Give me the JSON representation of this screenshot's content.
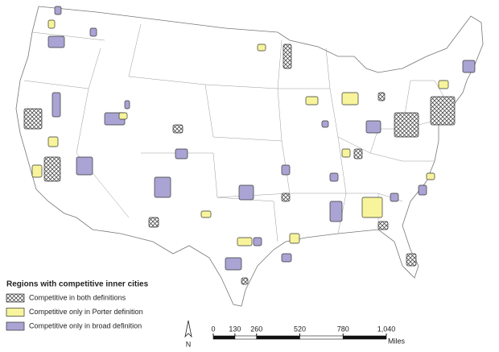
{
  "legend": {
    "title": "Regions with competitive inner cities",
    "items": [
      "Competitive in both definitions",
      "Competitive only in Porter definition",
      "Competitive only in broad definition"
    ]
  },
  "north": "N",
  "scale": {
    "ticks": [
      0,
      130,
      260,
      520,
      780,
      {
        "value": 1040,
        "label": "1,040"
      }
    ],
    "unit": "Miles"
  }
}
